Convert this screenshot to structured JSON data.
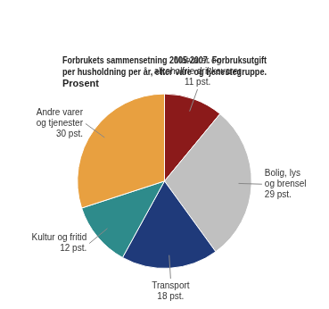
{
  "chart_data": {
    "type": "pie",
    "title": "Forbrukets sammensetning 2005-2007. Forbruksutgift\nper husholdning per år, etter vare og tjenestegruppe.\nProsent",
    "categories": [
      "Matvarer og\nalkoholfrie drikkevarer",
      "Bolig, lys\nog brensel",
      "Transport",
      "Kultur og fritid",
      "Andre varer\nog tjenester"
    ],
    "values": [
      11,
      29,
      18,
      12,
      30
    ],
    "value_labels": [
      "11 pst.",
      "29 pst.",
      "18 pst.",
      "12 pst.",
      "30 pst."
    ],
    "colors": [
      "#8B1A1A",
      "#C0C0C0",
      "#1F3A7A",
      "#2E8B8B",
      "#E8A040"
    ],
    "data_labels": true
  }
}
